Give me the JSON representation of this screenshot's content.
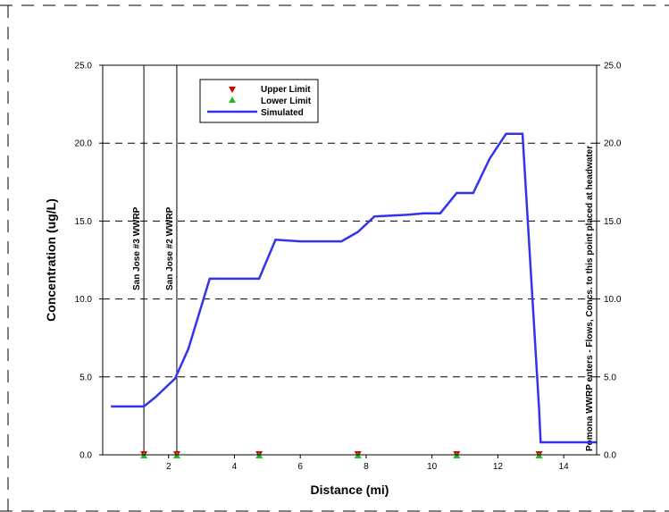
{
  "chart_data": {
    "type": "line",
    "xlabel": "Distance (mi)",
    "ylabel": "Concentration (ug/L)",
    "xlim": [
      0,
      15
    ],
    "ylim": [
      0,
      25
    ],
    "x_ticks": [
      2,
      4,
      6,
      8,
      10,
      12,
      14
    ],
    "y_ticks": [
      0,
      5,
      10,
      15,
      20,
      25
    ],
    "y_tick_labels": [
      "0.0",
      "5.0",
      "10.0",
      "15.0",
      "20.0",
      "25.0"
    ],
    "right_axis_tick_labels": [
      "0.0",
      "5.0",
      "10.0",
      "15.0",
      "20.0",
      "25.0"
    ],
    "grid": "horizontal dashed",
    "legend_position": "top-left",
    "legend": {
      "upper_limit": "Upper Limit",
      "lower_limit": "Lower Limit",
      "simulated": "Simulated"
    },
    "colors": {
      "simulated": "#3333ee",
      "upper_limit": "#dd0000",
      "lower_limit": "#22bb22"
    },
    "series": [
      {
        "name": "Simulated",
        "x": [
          0.25,
          1.25,
          1.6,
          2.2,
          2.6,
          3.25,
          4.75,
          5.25,
          6.0,
          7.25,
          7.75,
          8.25,
          9.25,
          9.75,
          10.25,
          10.75,
          11.25,
          11.75,
          12.25,
          12.75,
          13.25,
          13.3,
          15.0
        ],
        "y": [
          3.1,
          3.1,
          3.7,
          4.9,
          6.8,
          11.3,
          11.3,
          13.8,
          13.7,
          13.7,
          14.3,
          15.3,
          15.4,
          15.5,
          15.5,
          16.8,
          16.8,
          19.0,
          20.6,
          20.6,
          3.0,
          0.8,
          0.8
        ]
      },
      {
        "name": "Upper Limit",
        "x": [
          1.25,
          2.25,
          4.75,
          7.75,
          10.75,
          13.25
        ],
        "y": [
          0,
          0,
          0,
          0,
          0,
          0
        ]
      },
      {
        "name": "Lower Limit",
        "x": [
          1.25,
          2.25,
          4.75,
          7.75,
          10.75,
          13.25
        ],
        "y": [
          0,
          0,
          0,
          0,
          0,
          0
        ]
      }
    ],
    "annotations": [
      {
        "x": 1.25,
        "text": "San Jose #3 WWRP"
      },
      {
        "x": 2.25,
        "text": "San Jose #2 WWRP"
      },
      {
        "x": 15.0,
        "text": "Pomona WWRP enters - Flows, Concs. to this point placed at headwater"
      }
    ]
  }
}
